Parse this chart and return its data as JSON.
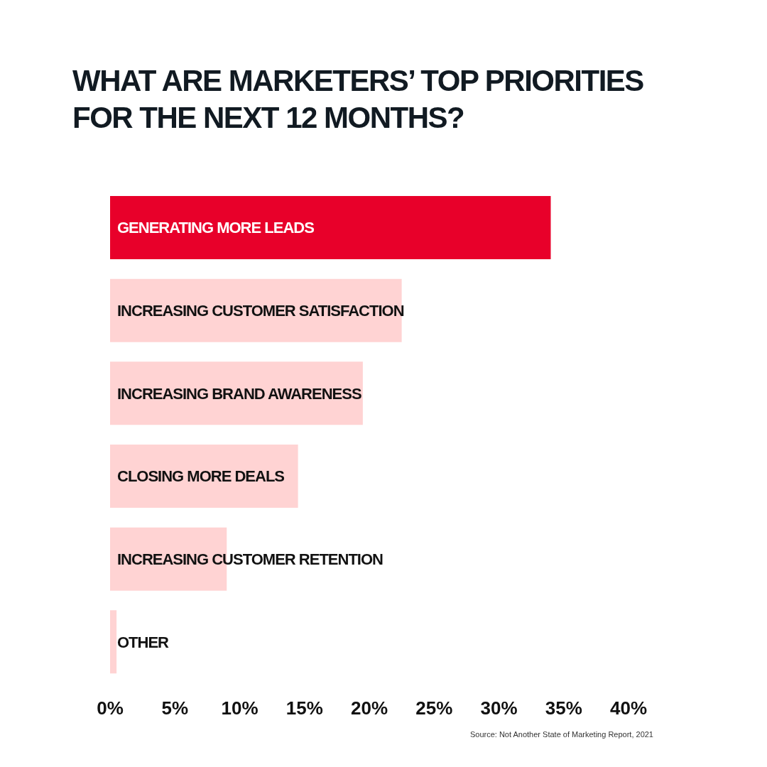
{
  "chart_data": {
    "type": "bar",
    "orientation": "horizontal",
    "title": "WHAT ARE MARKETERS’ TOP PRIORITIES FOR THE NEXT 12 MONTHS?",
    "categories": [
      "GENERATING MORE LEADS",
      "INCREASING CUSTOMER SATISFACTION",
      "INCREASING BRAND AWARENESS",
      "CLOSING MORE DEALS",
      "INCREASING CUSTOMER RETENTION",
      "OTHER"
    ],
    "values": [
      34,
      22.5,
      19.5,
      14.5,
      9,
      0.5
    ],
    "colors": [
      "#e8002a",
      "#ffd3d3",
      "#ffd3d3",
      "#ffd3d3",
      "#ffd3d3",
      "#ffd3d3"
    ],
    "xlim": [
      0,
      40
    ],
    "xticks": [
      {
        "value": 0,
        "label": "0%"
      },
      {
        "value": 5,
        "label": "5%"
      },
      {
        "value": 10,
        "label": "10%"
      },
      {
        "value": 15,
        "label": "15%"
      },
      {
        "value": 20,
        "label": "20%"
      },
      {
        "value": 25,
        "label": "25%"
      },
      {
        "value": 30,
        "label": "30%"
      },
      {
        "value": 35,
        "label": "35%"
      },
      {
        "value": 40,
        "label": "40%"
      }
    ],
    "grid": false,
    "legend": false,
    "annotations": [
      "Source: Not Another State of Marketing Report, 2021"
    ]
  }
}
